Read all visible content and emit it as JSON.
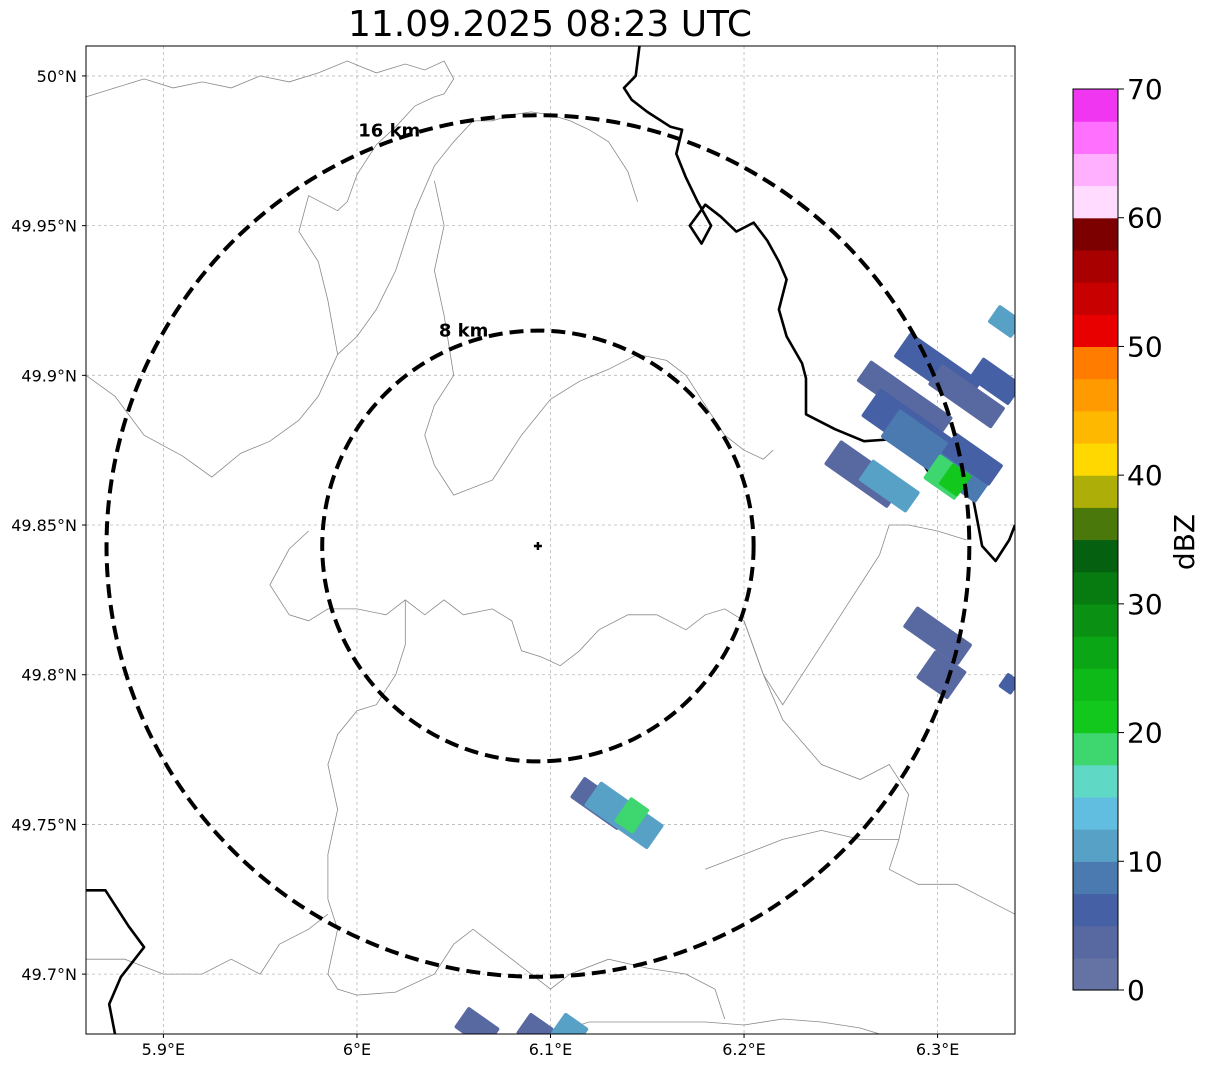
{
  "title": "11.09.2025 08:23 UTC",
  "map": {
    "lon_range": [
      5.86,
      6.34
    ],
    "lat_range": [
      49.68,
      50.01
    ],
    "center": {
      "lon": 6.0935,
      "lat": 49.843
    },
    "x_ticks": [
      {
        "value": 5.9,
        "label": "5.9°E"
      },
      {
        "value": 6.0,
        "label": "6°E"
      },
      {
        "value": 6.1,
        "label": "6.1°E"
      },
      {
        "value": 6.2,
        "label": "6.2°E"
      },
      {
        "value": 6.3,
        "label": "6.3°E"
      }
    ],
    "y_ticks": [
      {
        "value": 50.0,
        "label": "50°N"
      },
      {
        "value": 49.95,
        "label": "49.95°N"
      },
      {
        "value": 49.9,
        "label": "49.9°N"
      },
      {
        "value": 49.85,
        "label": "49.85°N"
      },
      {
        "value": 49.8,
        "label": "49.8°N"
      },
      {
        "value": 49.75,
        "label": "49.75°N"
      },
      {
        "value": 49.7,
        "label": "49.7°N"
      }
    ],
    "range_rings": [
      {
        "radius_km": 8,
        "label": "8 km"
      },
      {
        "radius_km": 16,
        "label": "16 km"
      }
    ],
    "gridlines": true
  },
  "colorbar": {
    "label": "dBZ",
    "min": 0,
    "max": 70,
    "ticks": [
      {
        "value": 0,
        "label": "0"
      },
      {
        "value": 10,
        "label": "10"
      },
      {
        "value": 20,
        "label": "20"
      },
      {
        "value": 30,
        "label": "30"
      },
      {
        "value": 40,
        "label": "40"
      },
      {
        "value": 50,
        "label": "50"
      },
      {
        "value": 60,
        "label": "60"
      },
      {
        "value": 70,
        "label": "70"
      }
    ],
    "colors": [
      "#6473a3",
      "#5868a0",
      "#4660a5",
      "#4b7ab1",
      "#57a0c6",
      "#62bee0",
      "#60d8c6",
      "#3ed66f",
      "#12c81c",
      "#0eba18",
      "#0ba615",
      "#0a9012",
      "#077a10",
      "#056010",
      "#4b780a",
      "#adaf08",
      "#ffd800",
      "#ffb800",
      "#ff9a00",
      "#ff7c00",
      "#e80000",
      "#c80000",
      "#a80000",
      "#7c0000",
      "#ffdcff",
      "#ffb0ff",
      "#ff70ff",
      "#f036f0"
    ]
  },
  "echoes": [
    {
      "lon": 6.283,
      "lat": 49.892,
      "dbz": 4,
      "len": 0.052,
      "w": 0.006
    },
    {
      "lon": 6.3,
      "lat": 49.902,
      "dbz": 6,
      "len": 0.045,
      "w": 0.007
    },
    {
      "lon": 6.315,
      "lat": 49.893,
      "dbz": 3,
      "len": 0.04,
      "w": 0.006
    },
    {
      "lon": 6.33,
      "lat": 49.898,
      "dbz": 5,
      "len": 0.025,
      "w": 0.006
    },
    {
      "lon": 6.335,
      "lat": 49.918,
      "dbz": 12,
      "len": 0.015,
      "w": 0.005
    },
    {
      "lon": 6.29,
      "lat": 49.88,
      "dbz": 5,
      "len": 0.06,
      "w": 0.008
    },
    {
      "lon": 6.3,
      "lat": 49.873,
      "dbz": 8,
      "len": 0.06,
      "w": 0.008
    },
    {
      "lon": 6.262,
      "lat": 49.867,
      "dbz": 4,
      "len": 0.04,
      "w": 0.007
    },
    {
      "lon": 6.275,
      "lat": 49.863,
      "dbz": 10,
      "len": 0.03,
      "w": 0.006
    },
    {
      "lon": 6.305,
      "lat": 49.866,
      "dbz": 18,
      "len": 0.02,
      "w": 0.007
    },
    {
      "lon": 6.309,
      "lat": 49.865,
      "dbz": 20,
      "len": 0.012,
      "w": 0.006
    },
    {
      "lon": 6.318,
      "lat": 49.872,
      "dbz": 5,
      "len": 0.03,
      "w": 0.006
    },
    {
      "lon": 6.3,
      "lat": 49.813,
      "dbz": 3,
      "len": 0.035,
      "w": 0.006
    },
    {
      "lon": 6.302,
      "lat": 49.8,
      "dbz": 4,
      "len": 0.02,
      "w": 0.008
    },
    {
      "lon": 6.337,
      "lat": 49.797,
      "dbz": 6,
      "len": 0.008,
      "w": 0.004
    },
    {
      "lon": 6.126,
      "lat": 49.757,
      "dbz": 3,
      "len": 0.03,
      "w": 0.006
    },
    {
      "lon": 6.138,
      "lat": 49.753,
      "dbz": 10,
      "len": 0.04,
      "w": 0.007
    },
    {
      "lon": 6.142,
      "lat": 49.753,
      "dbz": 18,
      "len": 0.012,
      "w": 0.007
    },
    {
      "lon": 6.062,
      "lat": 49.682,
      "dbz": 4,
      "len": 0.02,
      "w": 0.006
    },
    {
      "lon": 6.092,
      "lat": 49.681,
      "dbz": 4,
      "len": 0.015,
      "w": 0.006
    },
    {
      "lon": 6.11,
      "lat": 49.681,
      "dbz": 12,
      "len": 0.015,
      "w": 0.006
    }
  ],
  "borders": [
    [
      [
        6.146,
        50.01
      ],
      [
        6.144,
        50.0
      ],
      [
        6.138,
        49.996
      ],
      [
        6.142,
        49.992
      ],
      [
        6.15,
        49.988
      ],
      [
        6.162,
        49.983
      ],
      [
        6.168,
        49.982
      ],
      [
        6.165,
        49.974
      ],
      [
        6.17,
        49.966
      ],
      [
        6.176,
        49.958
      ],
      [
        6.183,
        49.95
      ],
      [
        6.178,
        49.944
      ],
      [
        6.172,
        49.95
      ],
      [
        6.18,
        49.957
      ],
      [
        6.188,
        49.953
      ],
      [
        6.196,
        49.948
      ],
      [
        6.205,
        49.951
      ],
      [
        6.212,
        49.945
      ],
      [
        6.218,
        49.938
      ],
      [
        6.222,
        49.932
      ],
      [
        6.218,
        49.922
      ],
      [
        6.222,
        49.913
      ],
      [
        6.23,
        49.904
      ],
      [
        6.232,
        49.899
      ],
      [
        6.232,
        49.887
      ],
      [
        6.247,
        49.882
      ],
      [
        6.262,
        49.878
      ],
      [
        6.284,
        49.879
      ],
      [
        6.295,
        49.868
      ],
      [
        6.306,
        49.863
      ],
      [
        6.318,
        49.86
      ],
      [
        6.321,
        49.85
      ],
      [
        6.323,
        49.843
      ],
      [
        6.33,
        49.838
      ],
      [
        6.337,
        49.845
      ],
      [
        6.34,
        49.85
      ]
    ],
    [
      [
        5.86,
        49.728
      ],
      [
        5.87,
        49.728
      ],
      [
        5.882,
        49.716
      ],
      [
        5.89,
        49.709
      ],
      [
        5.878,
        49.699
      ],
      [
        5.872,
        49.69
      ],
      [
        5.875,
        49.68
      ]
    ]
  ],
  "admin_lines": [
    [
      [
        5.86,
        49.993
      ],
      [
        5.875,
        49.996
      ],
      [
        5.89,
        49.999
      ],
      [
        5.905,
        49.996
      ],
      [
        5.92,
        49.998
      ],
      [
        5.935,
        49.996
      ],
      [
        5.95,
        50.0
      ],
      [
        5.965,
        49.998
      ],
      [
        5.98,
        50.001
      ],
      [
        5.995,
        50.005
      ],
      [
        6.01,
        50.001
      ],
      [
        6.025,
        50.004
      ],
      [
        6.035,
        50.002
      ],
      [
        6.045,
        50.005
      ],
      [
        6.05,
        49.999
      ],
      [
        6.045,
        49.994
      ],
      [
        6.04,
        49.993
      ]
    ],
    [
      [
        6.04,
        49.993
      ],
      [
        6.03,
        49.99
      ],
      [
        6.02,
        49.983
      ],
      [
        6.01,
        49.977
      ],
      [
        6.0,
        49.967
      ],
      [
        5.995,
        49.958
      ],
      [
        5.99,
        49.955
      ],
      [
        5.975,
        49.96
      ],
      [
        5.97,
        49.948
      ],
      [
        5.98,
        49.938
      ],
      [
        5.985,
        49.925
      ],
      [
        5.99,
        49.907
      ],
      [
        5.98,
        49.893
      ],
      [
        5.97,
        49.885
      ],
      [
        5.955,
        49.878
      ],
      [
        5.94,
        49.874
      ],
      [
        5.925,
        49.866
      ],
      [
        5.91,
        49.873
      ],
      [
        5.89,
        49.88
      ],
      [
        5.875,
        49.893
      ],
      [
        5.86,
        49.9
      ]
    ],
    [
      [
        5.99,
        49.907
      ],
      [
        6.0,
        49.913
      ],
      [
        6.01,
        49.922
      ],
      [
        6.02,
        49.935
      ],
      [
        6.03,
        49.955
      ],
      [
        6.04,
        49.97
      ],
      [
        6.05,
        49.978
      ],
      [
        6.06,
        49.985
      ],
      [
        6.07,
        49.985
      ],
      [
        6.08,
        49.987
      ],
      [
        6.09,
        49.988
      ],
      [
        6.1,
        49.987
      ],
      [
        6.11,
        49.985
      ],
      [
        6.12,
        49.982
      ],
      [
        6.13,
        49.978
      ],
      [
        6.14,
        49.968
      ],
      [
        6.145,
        49.958
      ]
    ],
    [
      [
        6.04,
        49.965
      ],
      [
        6.045,
        49.95
      ],
      [
        6.04,
        49.935
      ],
      [
        6.045,
        49.92
      ],
      [
        6.05,
        49.9
      ],
      [
        6.04,
        49.89
      ],
      [
        6.035,
        49.88
      ],
      [
        6.04,
        49.87
      ],
      [
        6.05,
        49.86
      ],
      [
        6.07,
        49.865
      ],
      [
        6.085,
        49.88
      ],
      [
        6.1,
        49.892
      ],
      [
        6.115,
        49.898
      ],
      [
        6.13,
        49.902
      ],
      [
        6.145,
        49.907
      ],
      [
        6.16,
        49.905
      ],
      [
        6.17,
        49.9
      ],
      [
        6.18,
        49.89
      ],
      [
        6.19,
        49.88
      ],
      [
        6.2,
        49.875
      ],
      [
        6.21,
        49.872
      ],
      [
        6.215,
        49.875
      ]
    ],
    [
      [
        5.975,
        49.848
      ],
      [
        5.965,
        49.842
      ],
      [
        5.955,
        49.83
      ],
      [
        5.965,
        49.82
      ],
      [
        5.975,
        49.818
      ],
      [
        5.985,
        49.822
      ],
      [
        6.0,
        49.822
      ],
      [
        6.015,
        49.82
      ],
      [
        6.025,
        49.825
      ],
      [
        6.035,
        49.82
      ],
      [
        6.045,
        49.825
      ],
      [
        6.055,
        49.82
      ],
      [
        6.07,
        49.822
      ],
      [
        6.08,
        49.818
      ],
      [
        6.085,
        49.808
      ],
      [
        6.095,
        49.806
      ],
      [
        6.105,
        49.803
      ],
      [
        6.115,
        49.808
      ],
      [
        6.125,
        49.815
      ],
      [
        6.14,
        49.82
      ],
      [
        6.155,
        49.82
      ],
      [
        6.17,
        49.815
      ],
      [
        6.18,
        49.82
      ],
      [
        6.19,
        49.822
      ],
      [
        6.2,
        49.818
      ]
    ],
    [
      [
        6.025,
        49.825
      ],
      [
        6.025,
        49.81
      ],
      [
        6.02,
        49.8
      ],
      [
        6.01,
        49.79
      ],
      [
        6.0,
        49.788
      ],
      [
        5.99,
        49.78
      ],
      [
        5.985,
        49.77
      ],
      [
        5.99,
        49.755
      ],
      [
        5.985,
        49.74
      ],
      [
        5.985,
        49.725
      ],
      [
        5.99,
        49.715
      ],
      [
        5.985,
        49.7
      ],
      [
        5.99,
        49.695
      ],
      [
        6.0,
        49.693
      ],
      [
        6.02,
        49.694
      ],
      [
        6.04,
        49.7
      ],
      [
        6.05,
        49.71
      ],
      [
        6.06,
        49.715
      ],
      [
        6.07,
        49.71
      ],
      [
        6.08,
        49.705
      ],
      [
        6.09,
        49.7
      ],
      [
        6.1,
        49.695
      ],
      [
        6.11,
        49.7
      ],
      [
        6.13,
        49.705
      ],
      [
        6.15,
        49.702
      ],
      [
        6.17,
        49.7
      ],
      [
        6.185,
        49.695
      ],
      [
        6.19,
        49.685
      ]
    ],
    [
      [
        5.86,
        49.705
      ],
      [
        5.88,
        49.705
      ],
      [
        5.9,
        49.7
      ],
      [
        5.92,
        49.7
      ],
      [
        5.935,
        49.705
      ],
      [
        5.95,
        49.7
      ],
      [
        5.96,
        49.71
      ],
      [
        5.975,
        49.715
      ],
      [
        5.985,
        49.72
      ]
    ],
    [
      [
        6.1,
        49.68
      ],
      [
        6.12,
        49.684
      ],
      [
        6.15,
        49.684
      ],
      [
        6.18,
        49.684
      ],
      [
        6.2,
        49.683
      ],
      [
        6.22,
        49.685
      ],
      [
        6.24,
        49.684
      ],
      [
        6.26,
        49.682
      ],
      [
        6.27,
        49.68
      ]
    ],
    [
      [
        6.2,
        49.818
      ],
      [
        6.21,
        49.8
      ],
      [
        6.22,
        49.79
      ],
      [
        6.23,
        49.8
      ],
      [
        6.24,
        49.81
      ],
      [
        6.25,
        49.82
      ],
      [
        6.26,
        49.83
      ],
      [
        6.27,
        49.84
      ],
      [
        6.275,
        49.85
      ],
      [
        6.285,
        49.85
      ],
      [
        6.3,
        49.848
      ],
      [
        6.315,
        49.845
      ]
    ],
    [
      [
        6.2,
        49.818
      ],
      [
        6.21,
        49.8
      ],
      [
        6.22,
        49.785
      ],
      [
        6.24,
        49.77
      ],
      [
        6.26,
        49.765
      ],
      [
        6.275,
        49.77
      ],
      [
        6.285,
        49.76
      ],
      [
        6.28,
        49.745
      ],
      [
        6.275,
        49.735
      ],
      [
        6.29,
        49.73
      ],
      [
        6.31,
        49.73
      ],
      [
        6.325,
        49.725
      ],
      [
        6.34,
        49.72
      ]
    ],
    [
      [
        6.18,
        49.735
      ],
      [
        6.2,
        49.74
      ],
      [
        6.22,
        49.745
      ],
      [
        6.24,
        49.748
      ],
      [
        6.26,
        49.745
      ],
      [
        6.28,
        49.745
      ]
    ]
  ],
  "center_marker": "radar-site"
}
